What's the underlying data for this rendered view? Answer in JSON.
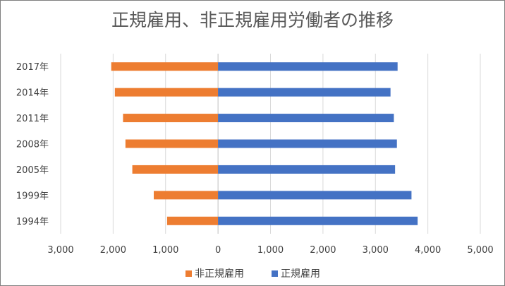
{
  "chart_data": {
    "type": "bar",
    "orientation": "horizontal",
    "layout": "diverging",
    "title": "正規雇用、非正規雇用労働者の推移",
    "categories": [
      "2017年",
      "2014年",
      "2011年",
      "2008年",
      "2005年",
      "1999年",
      "1994年"
    ],
    "series": [
      {
        "name": "非正規雇用",
        "color": "#ed7d31",
        "side": "left",
        "values": [
          2036,
          1967,
          1811,
          1765,
          1634,
          1225,
          971
        ]
      },
      {
        "name": "正規雇用",
        "color": "#4472c4",
        "side": "right",
        "values": [
          3423,
          3288,
          3352,
          3410,
          3375,
          3688,
          3805
        ]
      }
    ],
    "x_ticks": [
      "3,000",
      "2,000",
      "1,000",
      "0",
      "1,000",
      "2,000",
      "3,000",
      "4,000",
      "5,000"
    ],
    "xlim": [
      -3000,
      5000
    ],
    "grid": true,
    "legend_position": "bottom"
  }
}
